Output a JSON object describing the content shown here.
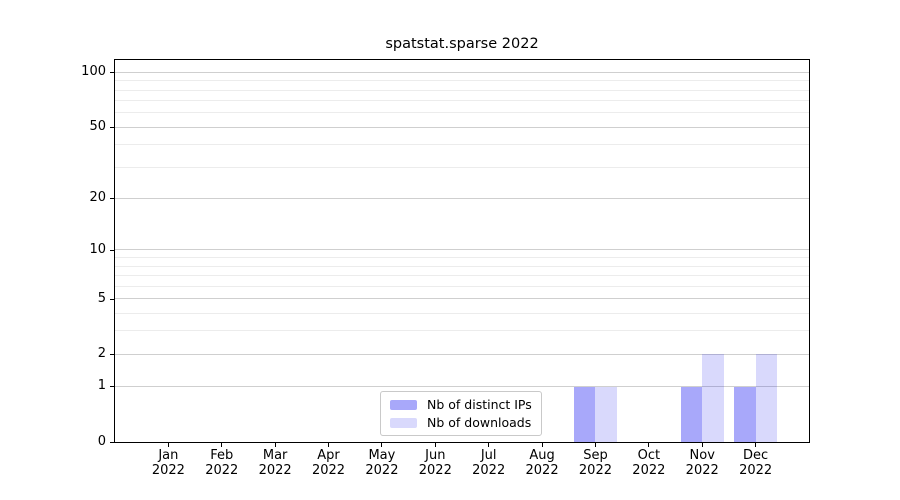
{
  "chart_data": {
    "type": "bar",
    "title": "spatstat.sparse 2022",
    "categories": [
      {
        "month": "Jan",
        "year": "2022"
      },
      {
        "month": "Feb",
        "year": "2022"
      },
      {
        "month": "Mar",
        "year": "2022"
      },
      {
        "month": "Apr",
        "year": "2022"
      },
      {
        "month": "May",
        "year": "2022"
      },
      {
        "month": "Jun",
        "year": "2022"
      },
      {
        "month": "Jul",
        "year": "2022"
      },
      {
        "month": "Aug",
        "year": "2022"
      },
      {
        "month": "Sep",
        "year": "2022"
      },
      {
        "month": "Oct",
        "year": "2022"
      },
      {
        "month": "Nov",
        "year": "2022"
      },
      {
        "month": "Dec",
        "year": "2022"
      }
    ],
    "series": [
      {
        "name": "Nb of distinct IPs",
        "color": "rgba(0,0,240,0.34)",
        "values": [
          0,
          0,
          0,
          0,
          0,
          0,
          0,
          0,
          1,
          0,
          1,
          1
        ]
      },
      {
        "name": "Nb of downloads",
        "color": "rgba(0,0,235,0.15)",
        "values": [
          0,
          0,
          0,
          0,
          0,
          0,
          0,
          0,
          1,
          0,
          2,
          2
        ]
      }
    ],
    "y_axis": {
      "scale": "log1p",
      "major_ticks": [
        0,
        1,
        2,
        5,
        10,
        20,
        50,
        100
      ],
      "minor_gridlines": [
        3,
        4,
        6,
        7,
        8,
        9,
        30,
        40,
        60,
        70,
        80,
        90
      ],
      "max": 117
    },
    "grid": "horizontal",
    "legend_position": "lower center inside",
    "colors": {
      "major_grid": "#cfcfcf",
      "minor_grid": "#ececec",
      "spine": "#000000",
      "text": "#000000",
      "background": "#ffffff"
    }
  }
}
